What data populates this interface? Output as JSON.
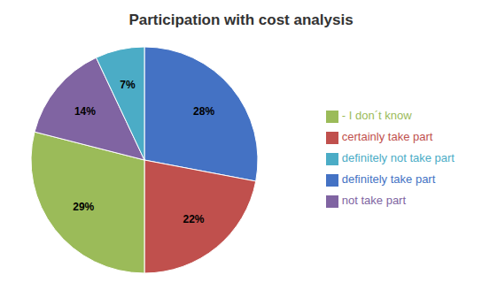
{
  "chart_data": {
    "type": "pie",
    "title": "Participation with cost analysis",
    "categories": [
      "definitely take part",
      "certainly take part",
      "- I don´t know",
      "not take part",
      "definitely not take part"
    ],
    "values": [
      28,
      22,
      29,
      14,
      7
    ],
    "value_labels": [
      "28%",
      "22%",
      "29%",
      "14%",
      "7%"
    ],
    "colors": [
      "#4472C4",
      "#C0504D",
      "#9BBB59",
      "#8064A2",
      "#4BACC6"
    ],
    "data_labels": true,
    "legend": "right"
  }
}
